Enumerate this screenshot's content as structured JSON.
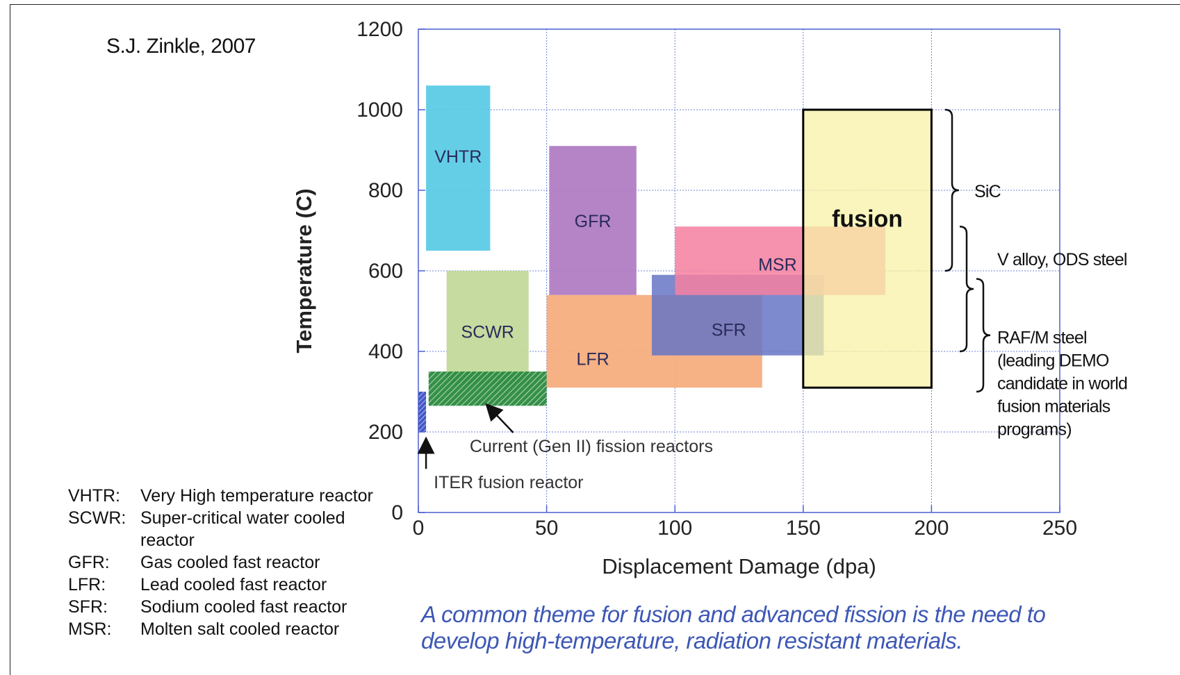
{
  "credit": "S.J. Zinkle, 2007",
  "caption": "A common theme for fusion and advanced fission is the need to develop high-temperature, radiation resistant materials.",
  "legend": [
    {
      "abbr": "VHTR:",
      "desc": "Very High temperature reactor"
    },
    {
      "abbr": "SCWR:",
      "desc": "Super-critical water cooled reactor"
    },
    {
      "abbr": "GFR:",
      "desc": "Gas cooled fast reactor"
    },
    {
      "abbr": "LFR:",
      "desc": "Lead cooled fast reactor"
    },
    {
      "abbr": "SFR:",
      "desc": "Sodium cooled fast reactor"
    },
    {
      "abbr": "MSR:",
      "desc": "Molten salt cooled reactor"
    }
  ],
  "chart_data": {
    "type": "area",
    "title": "",
    "xlabel": "Displacement Damage (dpa)",
    "ylabel": "Temperature (C)",
    "xlim": [
      0,
      250
    ],
    "ylim": [
      0,
      1200
    ],
    "xticks": [
      0,
      50,
      100,
      150,
      200,
      250
    ],
    "yticks": [
      0,
      200,
      400,
      600,
      800,
      1000,
      1200
    ],
    "grid": true,
    "regions": [
      {
        "name": "VHTR",
        "label": "VHTR",
        "x": [
          3,
          28
        ],
        "y": [
          650,
          1060
        ],
        "color": "#5ccbe6",
        "pattern": "none"
      },
      {
        "name": "GFR",
        "label": "GFR",
        "x": [
          51,
          85
        ],
        "y": [
          540,
          910
        ],
        "color": "#b07dc4",
        "pattern": "none"
      },
      {
        "name": "LFR",
        "label": "LFR",
        "x": [
          50,
          134
        ],
        "y": [
          310,
          540
        ],
        "color": "#f6ad7e",
        "pattern": "none"
      },
      {
        "name": "SCWR",
        "label": "SCWR",
        "x": [
          11,
          43
        ],
        "y": [
          320,
          600
        ],
        "color": "#c3d99a",
        "pattern": "none"
      },
      {
        "name": "Current fission",
        "label": "",
        "x": [
          4,
          50
        ],
        "y": [
          265,
          350
        ],
        "color": "#2a8a3e",
        "pattern": "hatch"
      },
      {
        "name": "ITER",
        "label": "",
        "x": [
          0,
          3
        ],
        "y": [
          200,
          300
        ],
        "color": "#3a4fc4",
        "pattern": "hatch"
      },
      {
        "name": "SFR",
        "label": "SFR",
        "x": [
          91,
          158
        ],
        "y": [
          390,
          590
        ],
        "color": "#6675c4",
        "pattern": "none"
      },
      {
        "name": "MSR",
        "label": "MSR",
        "x": [
          100,
          182
        ],
        "y": [
          540,
          710
        ],
        "color": "#f47fa0",
        "pattern": "none"
      },
      {
        "name": "fusion",
        "label": "fusion",
        "x": [
          150,
          200
        ],
        "y": [
          310,
          1000
        ],
        "color": "#f7f1a6",
        "pattern": "none",
        "outline": true
      }
    ],
    "annotations": [
      {
        "text": "Current (Gen II) fission reactors",
        "x": 20,
        "y": 150,
        "arrow_to": [
          27,
          265
        ]
      },
      {
        "text": "ITER fusion reactor",
        "x": 6,
        "y": 60,
        "arrow_to": [
          3,
          180
        ]
      }
    ],
    "material_ranges": [
      {
        "text": "SiC",
        "y": [
          600,
          1000
        ]
      },
      {
        "text": "V alloy, ODS steel",
        "y": [
          400,
          710
        ]
      },
      {
        "text": "RAF/M steel (leading DEMO candidate in world fusion materials programs)",
        "y": [
          300,
          580
        ]
      }
    ]
  }
}
